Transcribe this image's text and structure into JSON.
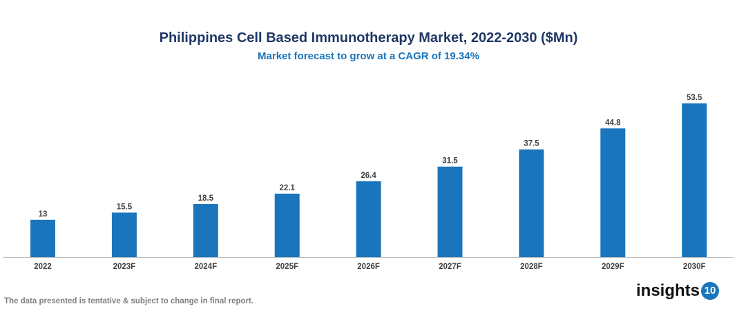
{
  "chart_data": {
    "type": "bar",
    "title": "Philippines Cell Based Immunotherapy Market, 2022-2030 ($Mn)",
    "subtitle": "Market forecast to grow at a CAGR of 19.34%",
    "categories": [
      "2022",
      "2023F",
      "2024F",
      "2025F",
      "2026F",
      "2027F",
      "2028F",
      "2029F",
      "2030F"
    ],
    "values": [
      13,
      15.5,
      18.5,
      22.1,
      26.4,
      31.5,
      37.5,
      44.8,
      53.5
    ],
    "data_labels": [
      "13",
      "15.5",
      "18.5",
      "22.1",
      "26.4",
      "31.5",
      "37.5",
      "44.8",
      "53.5"
    ],
    "bar_color": "#1a75bc",
    "grid": false,
    "legend": "none"
  },
  "footer": {
    "note": "The data presented is tentative & subject to change in final report.",
    "logo_text": "insights",
    "logo_number": "10"
  }
}
